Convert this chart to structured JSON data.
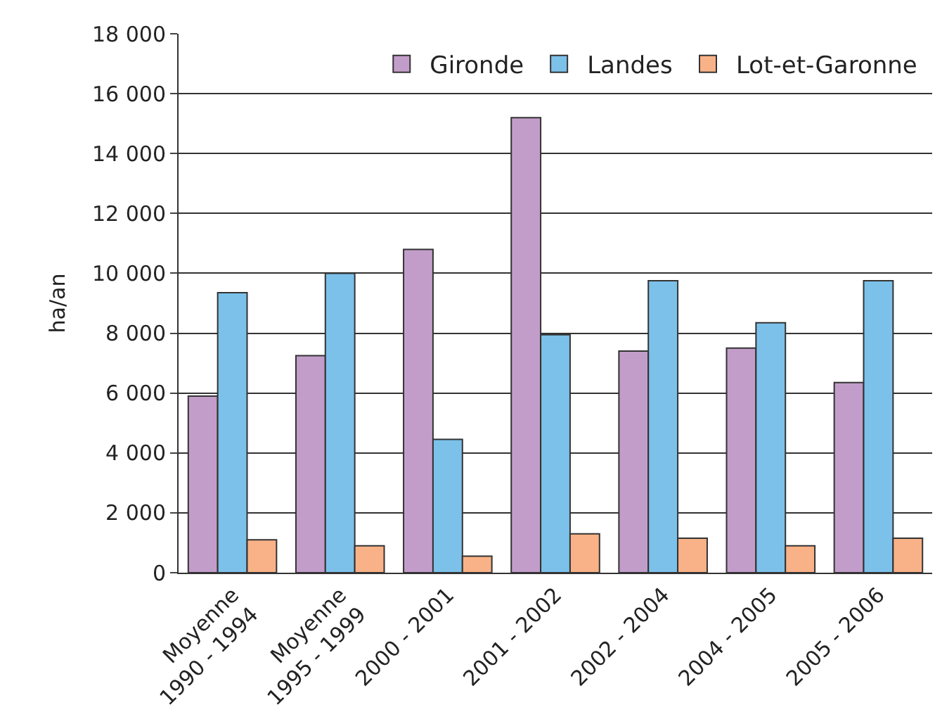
{
  "chart_data": {
    "type": "bar",
    "ylabel": "ha/an",
    "categories": [
      "Moyenne\n1990 - 1994",
      "Moyenne\n1995 - 1999",
      "2000 - 2001",
      "2001 - 2002",
      "2002 - 2004",
      "2004 - 2005",
      "2005 - 2006"
    ],
    "series": [
      {
        "name": "Gironde",
        "color": "#c39dc9",
        "values": [
          5900,
          7250,
          10800,
          15200,
          7400,
          7500,
          6350
        ]
      },
      {
        "name": "Landes",
        "color": "#7cc1ea",
        "values": [
          9350,
          10000,
          4450,
          7950,
          9750,
          8350,
          9750
        ]
      },
      {
        "name": "Lot-et-Garonne",
        "color": "#f9b287",
        "values": [
          1100,
          900,
          550,
          1300,
          1150,
          900,
          1150
        ]
      }
    ],
    "ylim": [
      0,
      18000
    ],
    "yticks": [
      {
        "value": 0,
        "label": "0"
      },
      {
        "value": 2000,
        "label": "2 000"
      },
      {
        "value": 4000,
        "label": "4 000"
      },
      {
        "value": 6000,
        "label": "6 000"
      },
      {
        "value": 8000,
        "label": "8 000"
      },
      {
        "value": 10000,
        "label": "10 000"
      },
      {
        "value": 12000,
        "label": "12 000"
      },
      {
        "value": 14000,
        "label": "14 000"
      },
      {
        "value": 16000,
        "label": "16 000"
      },
      {
        "value": 18000,
        "label": "18 000"
      }
    ],
    "grid": "y",
    "legend": "top right"
  }
}
